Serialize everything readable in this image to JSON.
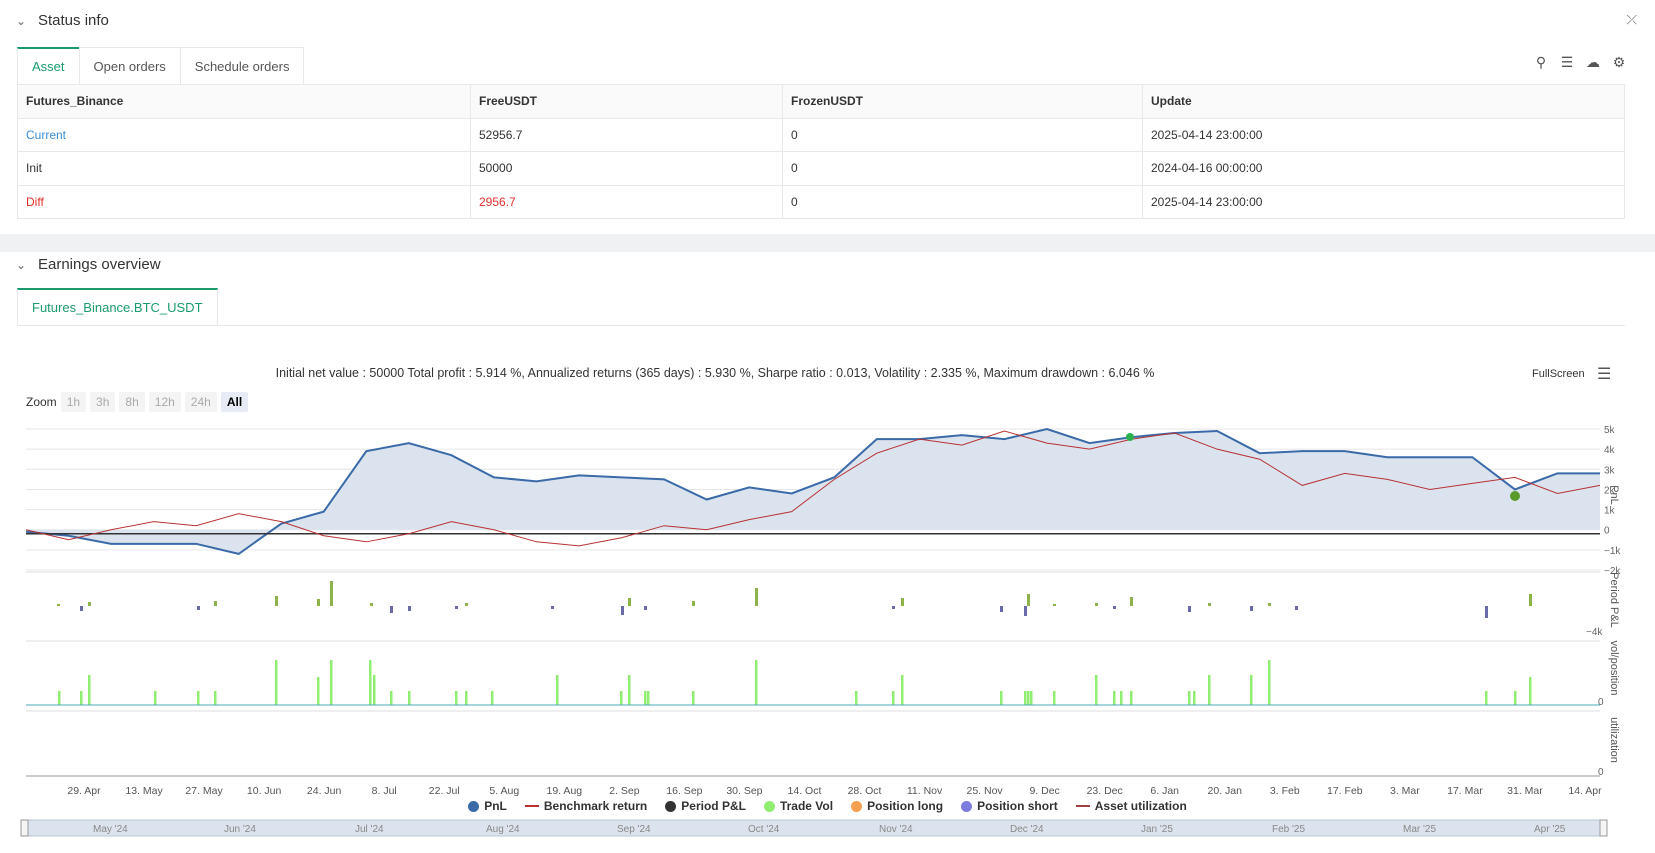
{
  "status": {
    "title": "Status info",
    "tabs": [
      "Asset",
      "Open orders",
      "Schedule orders"
    ],
    "table": {
      "headers": [
        "Futures_Binance",
        "FreeUSDT",
        "FrozenUSDT",
        "Update"
      ],
      "rows": [
        [
          "Current",
          "52956.7",
          "0",
          "2025-04-14 23:00:00"
        ],
        [
          "Init",
          "50000",
          "0",
          "2024-04-16 00:00:00"
        ],
        [
          "Diff",
          "2956.7",
          "0",
          "2025-04-14 23:00:00"
        ]
      ]
    }
  },
  "earnings": {
    "title": "Earnings overview",
    "tab": "Futures_Binance.BTC_USDT",
    "summary": "Initial net value : 50000 Total profit : 5.914 %, Annualized returns (365 days) : 5.930 %, Sharpe ratio : 0.013, Volatility : 2.335 %, Maximum drawdown : 6.046 %",
    "fullscreen": "FullScreen",
    "zoom_label": "Zoom",
    "zoom_buttons": [
      "1h",
      "3h",
      "8h",
      "12h",
      "24h",
      "All"
    ],
    "legend": [
      "PnL",
      "Benchmark return",
      "Period P&L",
      "Trade Vol",
      "Position long",
      "Position short",
      "Asset utilization"
    ],
    "axis_titles": [
      "PnL",
      "Period P&L",
      "vol/position",
      "utilization"
    ],
    "navigator_labels": [
      "May '24",
      "Jun '24",
      "Jul '24",
      "Aug '24",
      "Sep '24",
      "Oct '24",
      "Nov '24",
      "Dec '24",
      "Jan '25",
      "Feb '25",
      "Mar '25",
      "Apr '25"
    ]
  },
  "colors": {
    "pnl": "#3a6aa8",
    "benchmark": "#b83232",
    "period_pos": "#8db34a",
    "period_neg": "#6a6aa8",
    "vol": "#90ee70",
    "accent": "#1a9b6c",
    "diff": "#e0302c",
    "current": "#3a8fd8"
  },
  "chart_data": {
    "type": "line",
    "x_ticks": [
      "29. Apr",
      "13. May",
      "27. May",
      "10. Jun",
      "24. Jun",
      "8. Jul",
      "22. Jul",
      "5. Aug",
      "19. Aug",
      "2. Sep",
      "16. Sep",
      "30. Sep",
      "14. Oct",
      "28. Oct",
      "11. Nov",
      "25. Nov",
      "9. Dec",
      "23. Dec",
      "6. Jan",
      "20. Jan",
      "3. Feb",
      "17. Feb",
      "3. Mar",
      "17. Mar",
      "31. Mar",
      "14. Apr"
    ],
    "y_ticks": [
      "5k",
      "4k",
      "3k",
      "2k",
      "1k",
      "0",
      "−1k",
      "−2k"
    ],
    "period_ytick": "−4k",
    "vol_ytick": "0",
    "util_ytick": "0",
    "ylim": [
      -2000,
      5200
    ],
    "series": [
      {
        "name": "PnL",
        "values": [
          -100,
          -300,
          -700,
          -700,
          -700,
          -1200,
          300,
          900,
          3900,
          4300,
          3700,
          2600,
          2400,
          2700,
          2600,
          2500,
          1500,
          2100,
          1800,
          2600,
          4500,
          4500,
          4700,
          4500,
          5000,
          4300,
          4600,
          4800,
          4900,
          3800,
          3900,
          3900,
          3600,
          3600,
          3600,
          2000,
          2800,
          2800
        ]
      },
      {
        "name": "Benchmark return",
        "values": [
          0,
          -500,
          0,
          400,
          200,
          800,
          400,
          -300,
          -600,
          -200,
          400,
          0,
          -600,
          -800,
          -400,
          200,
          0,
          500,
          900,
          2500,
          3800,
          4500,
          4200,
          4900,
          4300,
          4000,
          4500,
          4800,
          4000,
          3500,
          2200,
          2800,
          2500,
          2000,
          2300,
          2600,
          1800,
          2200
        ]
      }
    ]
  }
}
